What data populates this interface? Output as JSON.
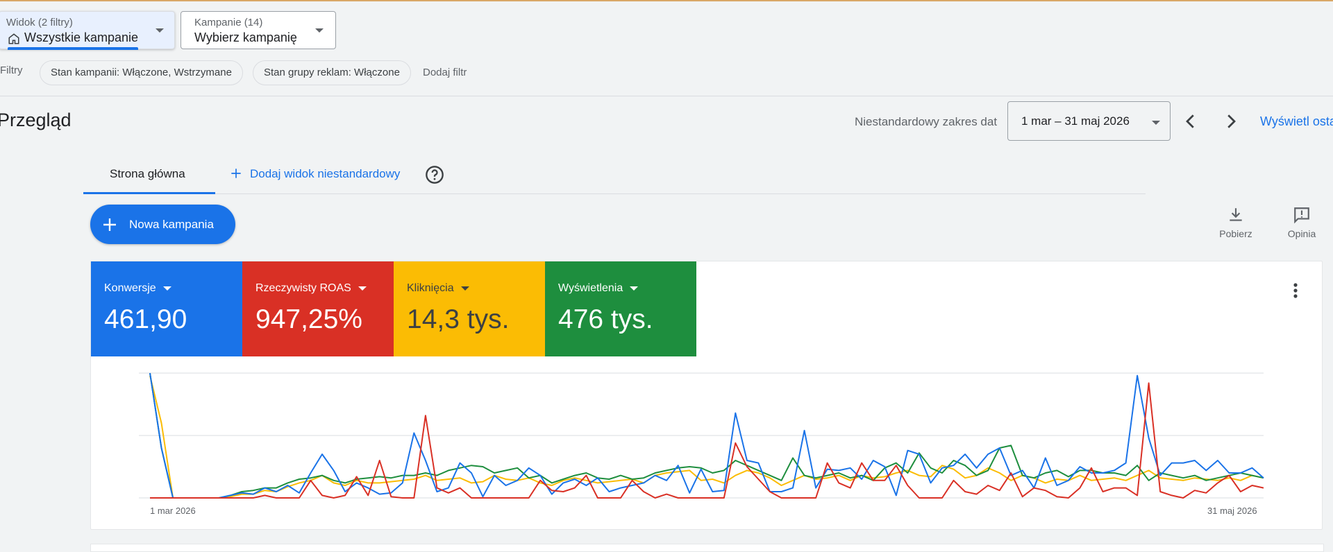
{
  "view_dropdown": {
    "label": "Widok (2 filtry)",
    "value": "Wszystkie kampanie",
    "icon": "home-icon"
  },
  "campaigns_dropdown": {
    "label": "Kampanie (14)",
    "value": "Wybierz kampanię"
  },
  "filters": {
    "label": "Filtry",
    "chips": [
      "Stan kampanii: Włączone, Wstrzymane",
      "Stan grupy reklam: Włączone"
    ],
    "add_label": "Dodaj filtr"
  },
  "page_title": "Przegląd",
  "date_range": {
    "label": "Niestandardowy zakres dat",
    "value": "1 mar – 31 maj 2026",
    "show_last": "Wyświetl osta"
  },
  "tabs": {
    "home": "Strona główna",
    "add_custom": "Dodaj widok niestandardowy"
  },
  "new_campaign_label": "Nowa kampania",
  "tools": {
    "download": "Pobierz",
    "feedback": "Opinia"
  },
  "metrics": [
    {
      "label": "Konwersje",
      "value": "461,90",
      "color": "#1a73e8"
    },
    {
      "label": "Rzeczywisty ROAS",
      "value": "947,25%",
      "color": "#d93025"
    },
    {
      "label": "Kliknięcia",
      "value": "14,3 tys.",
      "color": "#fbbc04"
    },
    {
      "label": "Wyświetlenia",
      "value": "476 tys.",
      "color": "#1e8e3e"
    }
  ],
  "chart_data": {
    "type": "line",
    "x_start": "1 mar 2026",
    "x_end": "31 maj 2026",
    "grid": true,
    "legend": "none",
    "series": [
      {
        "color": "#1a73e8",
        "values": [
          100,
          40,
          0,
          0,
          0,
          0,
          0,
          2,
          4,
          3,
          8,
          5,
          10,
          4,
          20,
          35,
          22,
          5,
          12,
          8,
          3,
          4,
          12,
          52,
          30,
          5,
          8,
          28,
          20,
          1,
          18,
          10,
          14,
          24,
          18,
          3,
          12,
          15,
          10,
          16,
          5,
          8,
          10,
          12,
          18,
          14,
          26,
          4,
          23,
          5,
          6,
          68,
          30,
          28,
          5,
          5,
          8,
          54,
          8,
          23,
          22,
          24,
          15,
          30,
          25,
          2,
          38,
          35,
          12,
          24,
          26,
          35,
          24,
          35,
          40,
          18,
          22,
          8,
          32,
          10,
          14,
          25,
          20,
          20,
          22,
          28,
          98,
          48,
          18,
          28,
          28,
          30,
          22,
          30,
          20,
          20,
          24,
          16
        ],
        "y_note": "relative share of chart height (0-100)"
      },
      {
        "color": "#d93025",
        "values": [
          0,
          0,
          0,
          0,
          0,
          0,
          0,
          0,
          0,
          0,
          2,
          0,
          0,
          0,
          14,
          2,
          0,
          2,
          17,
          2,
          30,
          1,
          0,
          0,
          66,
          8,
          4,
          8,
          0,
          0,
          0,
          0,
          0,
          0,
          14,
          6,
          5,
          8,
          18,
          0,
          0,
          0,
          14,
          5,
          0,
          3,
          0,
          0,
          0,
          0,
          0,
          44,
          25,
          15,
          5,
          0,
          0,
          0,
          0,
          28,
          12,
          8,
          28,
          14,
          14,
          26,
          10,
          0,
          0,
          0,
          14,
          5,
          3,
          10,
          6,
          20,
          1,
          8,
          6,
          1,
          0,
          8,
          24,
          5,
          8,
          8,
          2,
          92,
          5,
          2,
          0,
          6,
          4,
          12,
          18,
          5,
          10,
          8
        ],
        "y_note": "relative share of chart height (0-100)"
      },
      {
        "color": "#fbbc04",
        "values": [
          98,
          60,
          0,
          0,
          0,
          0,
          0,
          1,
          3,
          3,
          6,
          5,
          9,
          12,
          14,
          18,
          12,
          10,
          14,
          12,
          12,
          13,
          14,
          15,
          18,
          14,
          15,
          16,
          12,
          13,
          18,
          15,
          14,
          16,
          12,
          10,
          14,
          16,
          14,
          12,
          13,
          14,
          15,
          12,
          18,
          20,
          21,
          22,
          14,
          15,
          12,
          18,
          22,
          20,
          16,
          10,
          14,
          18,
          15,
          16,
          18,
          14,
          18,
          16,
          17,
          20,
          22,
          18,
          17,
          26,
          23,
          16,
          18,
          24,
          20,
          14,
          18,
          16,
          12,
          15,
          14,
          18,
          14,
          15,
          16,
          14,
          18,
          22,
          16,
          15,
          14,
          16,
          15,
          14,
          16,
          14,
          18,
          16
        ],
        "y_note": "relative share of chart height (0-100)"
      },
      {
        "color": "#1e8e3e",
        "values": [
          100,
          40,
          0,
          0,
          0,
          0,
          0,
          2,
          5,
          6,
          8,
          8,
          12,
          15,
          16,
          18,
          14,
          12,
          15,
          16,
          17,
          16,
          18,
          18,
          20,
          18,
          22,
          24,
          26,
          25,
          20,
          22,
          24,
          16,
          18,
          12,
          15,
          18,
          20,
          16,
          15,
          18,
          15,
          16,
          20,
          22,
          24,
          25,
          24,
          20,
          22,
          30,
          26,
          22,
          18,
          14,
          32,
          18,
          16,
          18,
          20,
          16,
          18,
          14,
          24,
          28,
          20,
          36,
          24,
          20,
          30,
          26,
          18,
          22,
          40,
          42,
          18,
          16,
          20,
          22,
          17,
          22,
          22,
          20,
          20,
          18,
          26,
          14,
          20,
          18,
          16,
          18,
          14,
          16,
          18,
          20,
          18,
          16
        ],
        "y_note": "relative share of chart height (0-100)"
      }
    ]
  }
}
